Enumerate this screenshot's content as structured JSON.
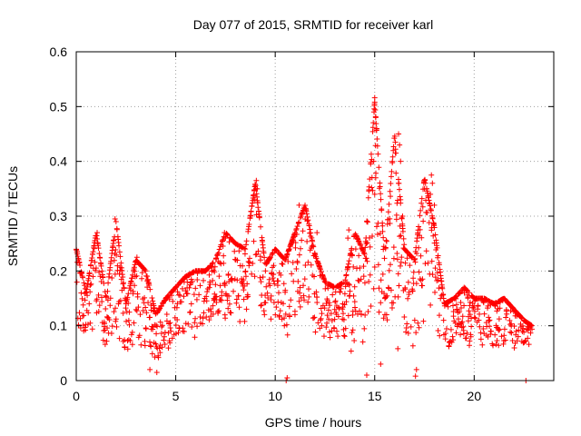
{
  "chart_data": {
    "type": "scatter",
    "title": "Day 077 of 2015, SRMTID for receiver karl",
    "xlabel": "GPS time / hours",
    "ylabel": "SRMTID / TECUs",
    "xlim": [
      0,
      24
    ],
    "ylim": [
      0,
      0.6
    ],
    "xticks": [
      0,
      5,
      10,
      15,
      20
    ],
    "xtick_labels": [
      "0",
      "5",
      "10",
      "15",
      "20"
    ],
    "yticks": [
      0,
      0.1,
      0.2,
      0.3,
      0.4,
      0.5,
      0.6
    ],
    "ytick_labels": [
      "0",
      "0.1",
      "0.2",
      "0.3",
      "0.4",
      "0.5",
      "0.6"
    ],
    "grid": true,
    "marker": "plus",
    "color": "#ff0000",
    "series": [
      {
        "name": "SRMTID",
        "envelope_profile": {
          "description": "approximate typical-level and spread envelope read from the scatter (hour, lower, center, upper in TECU)",
          "points": [
            [
              0.0,
              0.08,
              0.16,
              0.24
            ],
            [
              0.5,
              0.04,
              0.09,
              0.16
            ],
            [
              1.0,
              0.06,
              0.15,
              0.27
            ],
            [
              1.5,
              0.03,
              0.09,
              0.15
            ],
            [
              2.0,
              0.05,
              0.13,
              0.29
            ],
            [
              2.5,
              0.03,
              0.08,
              0.14
            ],
            [
              3.0,
              0.02,
              0.09,
              0.22
            ],
            [
              3.5,
              0.03,
              0.07,
              0.2
            ],
            [
              4.0,
              0.02,
              0.06,
              0.12
            ],
            [
              4.5,
              0.03,
              0.07,
              0.15
            ],
            [
              5.0,
              0.05,
              0.1,
              0.17
            ],
            [
              5.5,
              0.06,
              0.11,
              0.19
            ],
            [
              6.0,
              0.07,
              0.12,
              0.2
            ],
            [
              6.5,
              0.08,
              0.13,
              0.2
            ],
            [
              7.0,
              0.09,
              0.16,
              0.22
            ],
            [
              7.5,
              0.1,
              0.19,
              0.27
            ],
            [
              8.0,
              0.06,
              0.12,
              0.25
            ],
            [
              8.5,
              0.07,
              0.13,
              0.24
            ],
            [
              9.0,
              0.08,
              0.18,
              0.36
            ],
            [
              9.5,
              0.09,
              0.14,
              0.21
            ],
            [
              10.0,
              0.08,
              0.14,
              0.24
            ],
            [
              10.5,
              0.06,
              0.12,
              0.22
            ],
            [
              11.0,
              0.08,
              0.16,
              0.27
            ],
            [
              11.5,
              0.1,
              0.2,
              0.32
            ],
            [
              12.0,
              0.07,
              0.15,
              0.23
            ],
            [
              12.5,
              0.06,
              0.12,
              0.18
            ],
            [
              13.0,
              0.05,
              0.1,
              0.17
            ],
            [
              13.5,
              0.04,
              0.1,
              0.18
            ],
            [
              14.0,
              0.04,
              0.11,
              0.27
            ],
            [
              14.5,
              0.05,
              0.11,
              0.23
            ],
            [
              15.0,
              0.04,
              0.12,
              0.51
            ],
            [
              15.5,
              0.04,
              0.11,
              0.22
            ],
            [
              16.0,
              0.05,
              0.14,
              0.45
            ],
            [
              16.5,
              0.05,
              0.11,
              0.24
            ],
            [
              17.0,
              0.01,
              0.09,
              0.22
            ],
            [
              17.5,
              0.08,
              0.16,
              0.37
            ],
            [
              18.0,
              0.06,
              0.14,
              0.28
            ],
            [
              18.5,
              0.05,
              0.08,
              0.14
            ],
            [
              19.0,
              0.05,
              0.09,
              0.15
            ],
            [
              19.5,
              0.05,
              0.09,
              0.17
            ],
            [
              20.0,
              0.05,
              0.08,
              0.15
            ],
            [
              20.5,
              0.04,
              0.08,
              0.15
            ],
            [
              21.0,
              0.04,
              0.08,
              0.14
            ],
            [
              21.5,
              0.04,
              0.08,
              0.15
            ],
            [
              22.0,
              0.04,
              0.07,
              0.13
            ],
            [
              22.5,
              0.05,
              0.08,
              0.11
            ],
            [
              22.9,
              0.06,
              0.08,
              0.1
            ]
          ]
        },
        "highlight_points": [
          [
            15.0,
            0.516
          ],
          [
            15.0,
            0.508
          ],
          [
            15.05,
            0.48
          ],
          [
            15.1,
            0.46
          ],
          [
            14.95,
            0.4
          ],
          [
            15.05,
            0.37
          ],
          [
            15.0,
            0.34
          ],
          [
            16.2,
            0.45
          ],
          [
            16.25,
            0.43
          ],
          [
            16.3,
            0.4
          ],
          [
            16.2,
            0.36
          ],
          [
            16.3,
            0.33
          ],
          [
            16.4,
            0.3
          ],
          [
            17.85,
            0.375
          ],
          [
            17.9,
            0.36
          ],
          [
            17.8,
            0.34
          ],
          [
            18.0,
            0.32
          ],
          [
            9.05,
            0.365
          ],
          [
            9.1,
            0.35
          ],
          [
            8.95,
            0.33
          ],
          [
            11.2,
            0.32
          ],
          [
            1.95,
            0.295
          ],
          [
            2.0,
            0.29
          ],
          [
            1.05,
            0.27
          ],
          [
            3.05,
            0.225
          ],
          [
            0.05,
            0.235
          ],
          [
            7.45,
            0.27
          ],
          [
            7.5,
            0.26
          ],
          [
            13.7,
            0.275
          ],
          [
            13.65,
            0.26
          ],
          [
            12.1,
            0.27
          ],
          [
            14.6,
            0.01
          ],
          [
            15.3,
            0.03
          ],
          [
            17.05,
            0.008
          ],
          [
            17.1,
            0.02
          ],
          [
            22.6,
            0.0
          ],
          [
            10.55,
            0.0
          ],
          [
            10.6,
            0.005
          ],
          [
            3.7,
            0.02
          ],
          [
            4.05,
            0.015
          ]
        ],
        "dense_point_count": 1800
      }
    ]
  }
}
